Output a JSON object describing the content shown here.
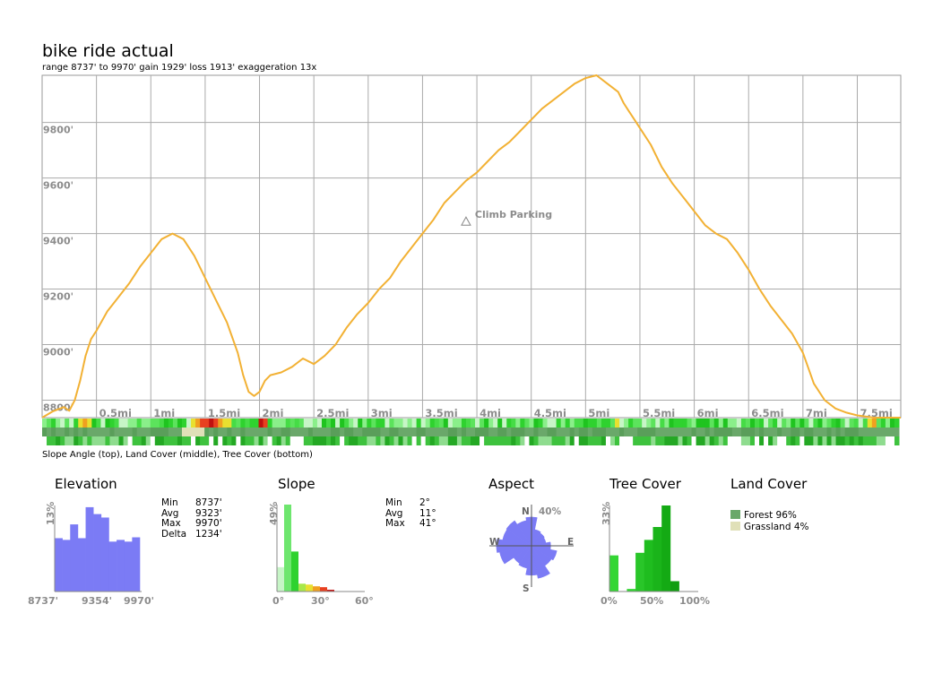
{
  "chart_data": [
    {
      "type": "line",
      "title": "bike ride actual",
      "subtitle": "range 8737' to 9970'  gain 1929'  loss 1913'  exaggeration 13x",
      "x_unit": "mi",
      "xlim": [
        0,
        7.9
      ],
      "ylim": [
        8737,
        9970
      ],
      "x_tick_labels": [
        "0.5mi",
        "1mi",
        "1.5mi",
        "2mi",
        "2.5mi",
        "3mi",
        "3.5mi",
        "4mi",
        "4.5mi",
        "5mi",
        "5.5mi",
        "6mi",
        "6.5mi",
        "7mi",
        "7.5mi"
      ],
      "x_tick_values": [
        0.5,
        1,
        1.5,
        2,
        2.5,
        3,
        3.5,
        4,
        4.5,
        5,
        5.5,
        6,
        6.5,
        7,
        7.5
      ],
      "y_tick_labels": [
        "8800'",
        "9000'",
        "9200'",
        "9400'",
        "9600'",
        "9800'"
      ],
      "y_tick_values": [
        8800,
        9000,
        9200,
        9400,
        9600,
        9800
      ],
      "grid": true,
      "line_color": "#f2b134",
      "series": [
        {
          "x": [
            0,
            0.1,
            0.2,
            0.25,
            0.3,
            0.35,
            0.4,
            0.45,
            0.5,
            0.6,
            0.7,
            0.8,
            0.9,
            1.0,
            1.1,
            1.2,
            1.3,
            1.4,
            1.5,
            1.6,
            1.7,
            1.8,
            1.85,
            1.9,
            1.95,
            2.0,
            2.05,
            2.1,
            2.2,
            2.3,
            2.4,
            2.5,
            2.6,
            2.7,
            2.8,
            2.9,
            3.0,
            3.1,
            3.2,
            3.3,
            3.4,
            3.5,
            3.6,
            3.7,
            3.8,
            3.9,
            4.0,
            4.1,
            4.2,
            4.3,
            4.4,
            4.5,
            4.6,
            4.7,
            4.8,
            4.9,
            5.0,
            5.1,
            5.2,
            5.3,
            5.35,
            5.4,
            5.45,
            5.5,
            5.6,
            5.7,
            5.8,
            5.9,
            6.0,
            6.1,
            6.2,
            6.3,
            6.4,
            6.5,
            6.6,
            6.7,
            6.8,
            6.9,
            7.0,
            7.1,
            7.2,
            7.3,
            7.4,
            7.5,
            7.6,
            7.65,
            7.7,
            7.75,
            7.8,
            7.85,
            7.9
          ],
          "y": [
            8737,
            8760,
            8775,
            8762,
            8800,
            8870,
            8960,
            9020,
            9050,
            9120,
            9170,
            9220,
            9280,
            9330,
            9380,
            9400,
            9380,
            9320,
            9240,
            9160,
            9080,
            8970,
            8890,
            8830,
            8815,
            8830,
            8870,
            8890,
            8900,
            8920,
            8950,
            8930,
            8960,
            9000,
            9060,
            9110,
            9150,
            9200,
            9240,
            9300,
            9350,
            9400,
            9450,
            9510,
            9550,
            9590,
            9620,
            9660,
            9700,
            9730,
            9770,
            9810,
            9850,
            9880,
            9910,
            9940,
            9960,
            9970,
            9940,
            9910,
            9870,
            9840,
            9810,
            9780,
            9720,
            9640,
            9580,
            9530,
            9480,
            9430,
            9400,
            9380,
            9330,
            9270,
            9200,
            9140,
            9090,
            9040,
            8970,
            8860,
            8800,
            8770,
            8755,
            8745,
            8740,
            8737,
            8737,
            8737,
            8737,
            8737,
            8737
          ],
          "y_comment_removed": true
        }
      ],
      "annotations": [
        {
          "text": "Climb Parking",
          "x": 3.9,
          "y": 9440,
          "marker": "triangle"
        }
      ]
    },
    {
      "type": "heatmap",
      "caption": "Slope Angle (top), Land Cover (middle), Tree Cover (bottom)"
    },
    {
      "type": "bar",
      "title": "Elevation",
      "y_axis_label": "13%",
      "x_tick_labels": [
        "8737'",
        "9354'",
        "9970'"
      ],
      "bar_color": "#7b7bf5",
      "values": [
        0.62,
        0.6,
        0.78,
        0.62,
        0.98,
        0.9,
        0.86,
        0.58,
        0.6,
        0.58,
        0.63
      ],
      "stats": [
        {
          "label": "Min",
          "value": "8737'"
        },
        {
          "label": "Avg",
          "value": "9323'"
        },
        {
          "label": "Max",
          "value": "9970'"
        },
        {
          "label": "Delta",
          "value": "1234'"
        }
      ]
    },
    {
      "type": "bar",
      "title": "Slope",
      "y_axis_label": "49%",
      "x_tick_labels": [
        "0°",
        "30°",
        "60°"
      ],
      "xlim": [
        0,
        60
      ],
      "bins": [
        {
          "from": 0,
          "to": 5,
          "value": 0.28,
          "color": "#c7f5c7"
        },
        {
          "from": 5,
          "to": 10,
          "value": 1.0,
          "color": "#6ee66e"
        },
        {
          "from": 10,
          "to": 15,
          "value": 0.46,
          "color": "#2fd22f"
        },
        {
          "from": 15,
          "to": 20,
          "value": 0.09,
          "color": "#a8e84a"
        },
        {
          "from": 20,
          "to": 25,
          "value": 0.08,
          "color": "#e8e030"
        },
        {
          "from": 25,
          "to": 30,
          "value": 0.06,
          "color": "#f0a020"
        },
        {
          "from": 30,
          "to": 35,
          "value": 0.05,
          "color": "#e84020"
        },
        {
          "from": 35,
          "to": 40,
          "value": 0.02,
          "color": "#c01010"
        }
      ],
      "stats": [
        {
          "label": "Min",
          "value": "2°"
        },
        {
          "label": "Avg",
          "value": "11°"
        },
        {
          "label": "Max",
          "value": "41°"
        }
      ]
    },
    {
      "type": "pie",
      "title": "Aspect",
      "max_label": "40%",
      "directions": {
        "n": "N",
        "s": "S",
        "e": "E",
        "w": "W"
      },
      "color": "#7b7bf5",
      "sector_values": [
        0.78,
        0.45,
        0.42,
        0.4,
        0.52,
        0.7,
        0.65,
        0.9,
        0.8,
        0.62,
        0.58,
        0.88,
        0.95,
        0.8,
        0.82,
        0.7
      ]
    },
    {
      "type": "bar",
      "title": "Tree Cover",
      "y_axis_label": "33%",
      "x_tick_labels": [
        "0%",
        "50%",
        "100%"
      ],
      "bar_color": "#1cc21c",
      "values": [
        0.42,
        0.0,
        0.03,
        0.45,
        0.6,
        0.75,
        1.0,
        0.12,
        0.0,
        0.0
      ],
      "bar_colors": [
        "#33d633",
        "#33d633",
        "#33d633",
        "#29c629",
        "#1fbd1f",
        "#1ab41a",
        "#14aa14",
        "#119e11",
        "#119e11",
        "#119e11"
      ]
    },
    {
      "type": "table",
      "title": "Land Cover",
      "entries": [
        {
          "label": "Forest 96%",
          "color": "#6aa86a"
        },
        {
          "label": "Grassland 4%",
          "color": "#e0e0b8"
        }
      ]
    }
  ]
}
